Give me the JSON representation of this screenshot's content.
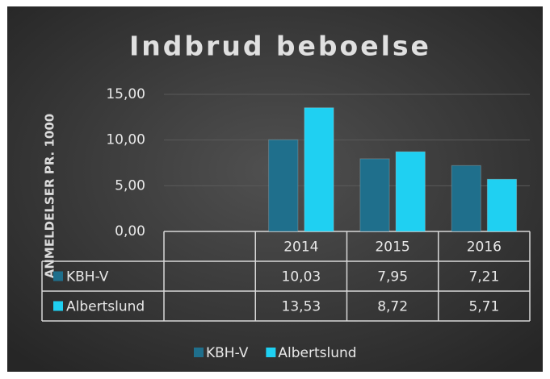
{
  "chart_data": {
    "type": "bar",
    "title": "Indbrud beboelse",
    "y_label": "ANMELDELSER PR. 1000",
    "categories": [
      null,
      "2014",
      "2015",
      "2016"
    ],
    "series": [
      {
        "name": "KBH-V",
        "color": "#1f6f8c",
        "values": [
          null,
          10.03,
          7.95,
          7.21
        ],
        "value_labels": [
          null,
          "10,03",
          "7,95",
          "7,21"
        ]
      },
      {
        "name": "Albertslund",
        "color": "#1fd0f2",
        "values": [
          null,
          13.53,
          8.72,
          5.71
        ],
        "value_labels": [
          null,
          "13,53",
          "8,72",
          "5,71"
        ]
      }
    ],
    "ylim": [
      0,
      15
    ],
    "yticks": [
      {
        "value": 0,
        "label": "0,00"
      },
      {
        "value": 5,
        "label": "5,00"
      },
      {
        "value": 10,
        "label": "10,00"
      },
      {
        "value": 15,
        "label": "15,00"
      }
    ],
    "grid": true,
    "legend": "bottom",
    "data_table": true
  }
}
